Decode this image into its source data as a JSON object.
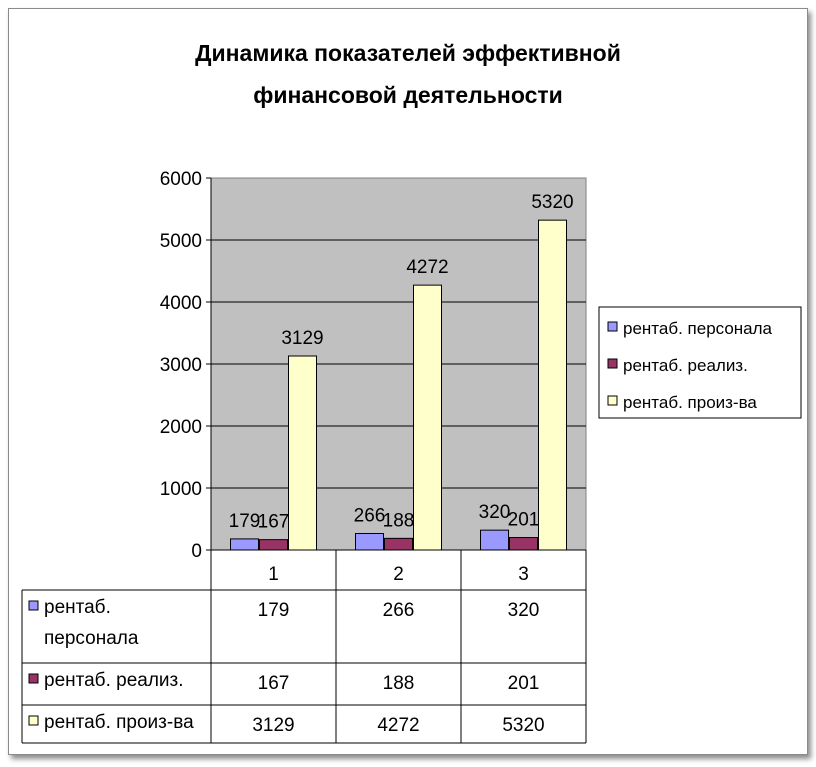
{
  "chart_data": {
    "type": "bar",
    "title_lines": [
      "Динамика показателей эффективной",
      "финансовой деятельности"
    ],
    "categories": [
      "1",
      "2",
      "3"
    ],
    "ylim": [
      0,
      6000
    ],
    "yticks": [
      "0",
      "1000",
      "2000",
      "3000",
      "4000",
      "5000",
      "6000"
    ],
    "series": [
      {
        "name": "рентаб. персонала",
        "table_label_lines": [
          "рентаб.",
          "персонала"
        ],
        "values": [
          179,
          266,
          320
        ],
        "color": "#9999ff"
      },
      {
        "name": "рентаб. реализ.",
        "table_label_lines": [
          "рентаб. реализ."
        ],
        "values": [
          167,
          188,
          201
        ],
        "color": "#993366"
      },
      {
        "name": "рентаб. произ-ва",
        "table_label_lines": [
          "рентаб. произ-ва"
        ],
        "values": [
          3129,
          4272,
          5320
        ],
        "color": "#ffffcc"
      }
    ],
    "data_labels": [
      [
        "179",
        "167",
        "3129"
      ],
      [
        "266",
        "188",
        "4272"
      ],
      [
        "320",
        "201",
        "5320"
      ]
    ],
    "plot_background": "#c0c0c0",
    "legend_position": "right",
    "data_table": true
  }
}
